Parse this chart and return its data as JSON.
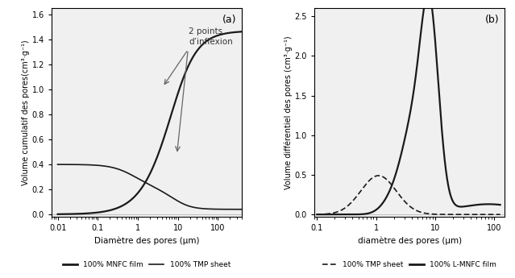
{
  "fig_width": 6.39,
  "fig_height": 3.45,
  "dpi": 100,
  "panel_a": {
    "label": "(a)",
    "xlabel": "Diamètre des pores (μm)",
    "ylabel": "Volume cumulatif des pores(cm³·g⁻¹)",
    "xlim": [
      0.007,
      400
    ],
    "ylim": [
      -0.02,
      1.65
    ],
    "yticks": [
      0,
      0.2,
      0.4,
      0.6,
      0.8,
      1.0,
      1.2,
      1.4,
      1.6
    ],
    "xtick_labels": [
      "0.01",
      "0.1",
      "1",
      "10",
      "100"
    ],
    "xtick_vals": [
      0.01,
      0.1,
      1,
      10,
      100
    ],
    "legend": [
      "100% MNFC film",
      "100% TMP sheet"
    ]
  },
  "panel_b": {
    "label": "(b)",
    "xlabel": "diamètre des pores (μm)",
    "ylabel": "Volume différentiel des pores (cm³·g⁻¹)",
    "xlim": [
      0.09,
      150
    ],
    "ylim": [
      -0.03,
      2.6
    ],
    "yticks": [
      0,
      0.5,
      1.0,
      1.5,
      2.0,
      2.5
    ],
    "xtick_labels": [
      "0.1",
      "1",
      "10",
      "100"
    ],
    "xtick_vals": [
      0.1,
      1,
      10,
      100
    ],
    "legend": [
      "100% TMP sheet",
      "100% L-MNFC film"
    ]
  },
  "line_color": "#1a1a1a",
  "bg_color": "#f0f0f0"
}
